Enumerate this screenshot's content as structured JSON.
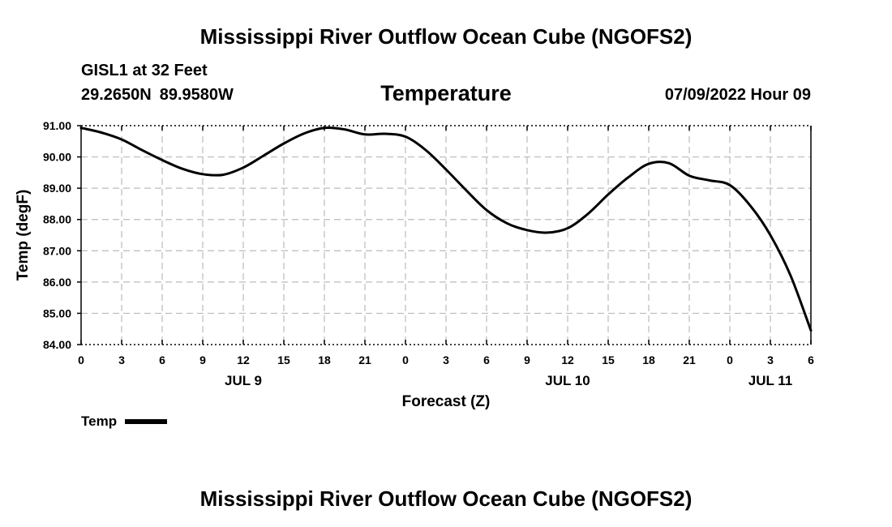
{
  "header": {
    "title": "Mississippi River Outflow Ocean Cube (NGOFS2)",
    "station": "GISL1 at 32 Feet",
    "lat": "29.2650N",
    "lon": "89.9580W",
    "subtitle": "Temperature",
    "datetime": "07/09/2022 Hour 09"
  },
  "footer": {
    "title": "Mississippi River Outflow Ocean Cube (NGOFS2)"
  },
  "legend": {
    "label": "Temp"
  },
  "chart_data": {
    "type": "line",
    "title": "Temperature",
    "xlabel": "Forecast (Z)",
    "ylabel": "Temp (degF)",
    "x_unit": "hours since JUL 9 00Z",
    "xlim": [
      0,
      54
    ],
    "ylim": [
      84.0,
      91.0
    ],
    "grid": true,
    "legend_position": "bottom-left",
    "line_color": "#000000",
    "grid_color": "#bbbbbb",
    "y_ticks": [
      84.0,
      85.0,
      86.0,
      87.0,
      88.0,
      89.0,
      90.0,
      91.0
    ],
    "y_tick_labels": [
      "84.00",
      "85.00",
      "86.00",
      "87.00",
      "88.00",
      "89.00",
      "90.00",
      "91.00"
    ],
    "x_ticks": [
      0,
      3,
      6,
      9,
      12,
      15,
      18,
      21,
      24,
      27,
      30,
      33,
      36,
      39,
      42,
      45,
      48,
      51,
      54
    ],
    "x_tick_labels": [
      "0",
      "3",
      "6",
      "9",
      "12",
      "15",
      "18",
      "21",
      "0",
      "3",
      "6",
      "9",
      "12",
      "15",
      "18",
      "21",
      "0",
      "3",
      "6"
    ],
    "date_labels": [
      {
        "x": 12,
        "label": "JUL 9"
      },
      {
        "x": 36,
        "label": "JUL 10"
      },
      {
        "x": 51,
        "label": "JUL 11"
      }
    ],
    "series": [
      {
        "name": "Temp",
        "x": [
          0,
          1.5,
          3,
          4.5,
          6,
          7.5,
          9,
          10.5,
          12,
          13.5,
          15,
          16.5,
          18,
          19.5,
          21,
          22.5,
          24,
          25.5,
          27,
          28.5,
          30,
          31.5,
          33,
          34.5,
          36,
          37.5,
          39,
          40.5,
          42,
          43.5,
          45,
          46.5,
          48,
          49.5,
          51,
          52.5,
          54
        ],
        "values": [
          90.93,
          90.78,
          90.56,
          90.22,
          89.9,
          89.62,
          89.45,
          89.43,
          89.66,
          90.04,
          90.43,
          90.75,
          90.93,
          90.88,
          90.72,
          90.74,
          90.65,
          90.22,
          89.6,
          88.93,
          88.3,
          87.88,
          87.66,
          87.58,
          87.72,
          88.18,
          88.8,
          89.35,
          89.78,
          89.8,
          89.4,
          89.25,
          89.1,
          88.45,
          87.5,
          86.2,
          84.45
        ]
      }
    ]
  }
}
